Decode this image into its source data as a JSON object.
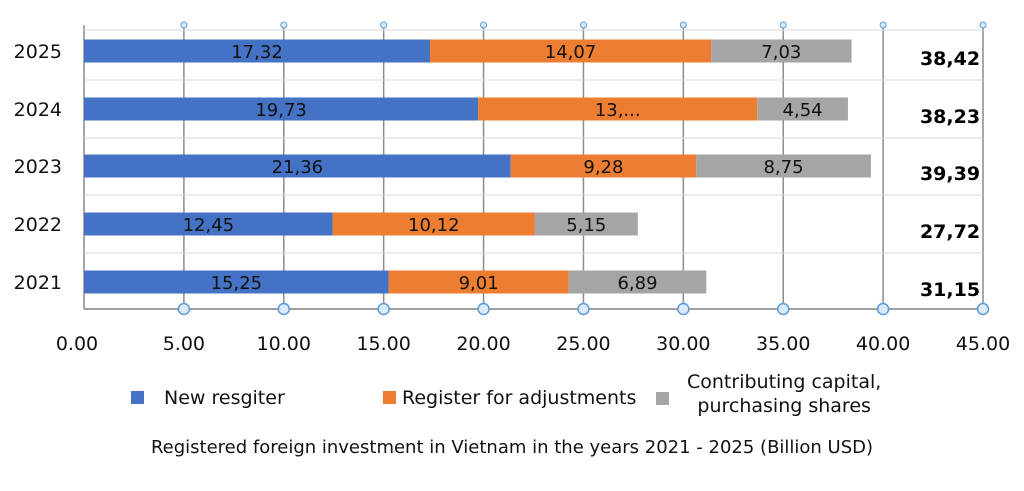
{
  "chart_data": {
    "type": "bar",
    "orientation": "horizontal",
    "stacked": true,
    "title": "Registered foreign investment in Vietnam in the years 2021 - 2025 (Billion USD)",
    "categories": [
      "2025",
      "2024",
      "2023",
      "2022",
      "2021"
    ],
    "series": [
      {
        "name": "New resgiter",
        "color": "#4472C4",
        "values": [
          17.32,
          19.73,
          21.36,
          12.45,
          15.25
        ],
        "labels": [
          "17,32",
          "19,73",
          "21,36",
          "12,45",
          "15,25"
        ]
      },
      {
        "name": "Register for adjustments",
        "color": "#ED7D31",
        "values": [
          14.07,
          13.97,
          9.28,
          10.12,
          9.01
        ],
        "labels": [
          "14,07",
          "13,...",
          "9,28",
          "10,12",
          "9,01"
        ]
      },
      {
        "name": "Contributing capital,\npurchasing shares",
        "color": "#A5A5A5",
        "values": [
          7.03,
          4.54,
          8.75,
          5.15,
          6.89
        ],
        "labels": [
          "7,03",
          "4,54",
          "8,75",
          "5,15",
          "6,89"
        ]
      }
    ],
    "totals": [
      "38,42",
      "38,23",
      "39,39",
      "27,72",
      "31,15"
    ],
    "xlim": [
      0,
      45
    ],
    "xticks": [
      "0.00",
      "5.00",
      "10.00",
      "15.00",
      "20.00",
      "25.00",
      "30.00",
      "35.00",
      "40.00",
      "45.00"
    ],
    "xtick_values": [
      0,
      5,
      10,
      15,
      20,
      25,
      30,
      35,
      40,
      45
    ],
    "grid": true,
    "legend": "bottom"
  }
}
